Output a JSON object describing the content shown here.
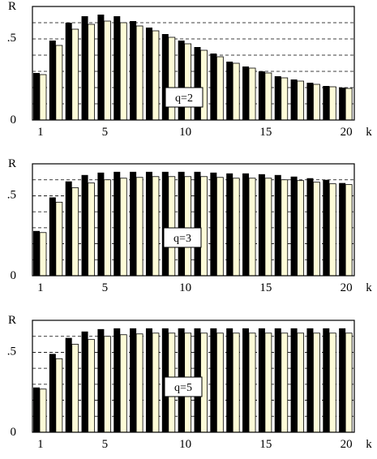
{
  "chart_data": [
    {
      "type": "bar",
      "panel_label": "q=2",
      "ylabel": "R",
      "xlabel": "k",
      "ytick_labels": {
        "half": ".5",
        "zero": "0"
      },
      "xtick_labels": [
        "1",
        "5",
        "10",
        "15",
        "20"
      ],
      "categories": [
        1,
        2,
        3,
        4,
        5,
        6,
        7,
        8,
        9,
        10,
        11,
        12,
        13,
        14,
        15,
        16,
        17,
        18,
        19,
        20
      ],
      "ylim": [
        0,
        0.7
      ],
      "series": [
        {
          "color": "#000000",
          "values": [
            0.29,
            0.49,
            0.6,
            0.64,
            0.65,
            0.64,
            0.61,
            0.57,
            0.53,
            0.49,
            0.45,
            0.41,
            0.36,
            0.33,
            0.3,
            0.27,
            0.25,
            0.23,
            0.21,
            0.2
          ]
        },
        {
          "color": "#fdfbd7",
          "values": [
            0.28,
            0.46,
            0.56,
            0.59,
            0.61,
            0.6,
            0.58,
            0.55,
            0.51,
            0.47,
            0.43,
            0.39,
            0.35,
            0.32,
            0.29,
            0.26,
            0.24,
            0.22,
            0.205,
            0.195
          ]
        }
      ]
    },
    {
      "type": "bar",
      "panel_label": "q=3",
      "ylabel": "R",
      "xlabel": "k",
      "ytick_labels": {
        "half": ".5",
        "zero": "0"
      },
      "xtick_labels": [
        "1",
        "5",
        "10",
        "15",
        "20"
      ],
      "categories": [
        1,
        2,
        3,
        4,
        5,
        6,
        7,
        8,
        9,
        10,
        11,
        12,
        13,
        14,
        15,
        16,
        17,
        18,
        19,
        20
      ],
      "ylim": [
        0,
        0.7
      ],
      "series": [
        {
          "color": "#000000",
          "values": [
            0.28,
            0.49,
            0.59,
            0.63,
            0.645,
            0.65,
            0.65,
            0.65,
            0.65,
            0.65,
            0.65,
            0.645,
            0.64,
            0.64,
            0.635,
            0.63,
            0.62,
            0.61,
            0.6,
            0.58
          ]
        },
        {
          "color": "#fdfbd7",
          "values": [
            0.27,
            0.46,
            0.55,
            0.58,
            0.6,
            0.61,
            0.615,
            0.62,
            0.62,
            0.62,
            0.62,
            0.615,
            0.61,
            0.61,
            0.61,
            0.6,
            0.595,
            0.585,
            0.575,
            0.57
          ]
        }
      ]
    },
    {
      "type": "bar",
      "panel_label": "q=5",
      "ylabel": "R",
      "xlabel": "k",
      "ytick_labels": {
        "half": ".5",
        "zero": "0"
      },
      "xtick_labels": [
        "1",
        "5",
        "10",
        "15",
        "20"
      ],
      "categories": [
        1,
        2,
        3,
        4,
        5,
        6,
        7,
        8,
        9,
        10,
        11,
        12,
        13,
        14,
        15,
        16,
        17,
        18,
        19,
        20
      ],
      "ylim": [
        0,
        0.7
      ],
      "series": [
        {
          "color": "#000000",
          "values": [
            0.28,
            0.49,
            0.59,
            0.63,
            0.645,
            0.65,
            0.65,
            0.65,
            0.65,
            0.65,
            0.65,
            0.65,
            0.65,
            0.65,
            0.65,
            0.65,
            0.65,
            0.65,
            0.65,
            0.65
          ]
        },
        {
          "color": "#fdfbd7",
          "values": [
            0.27,
            0.46,
            0.55,
            0.58,
            0.6,
            0.61,
            0.615,
            0.62,
            0.62,
            0.62,
            0.62,
            0.62,
            0.62,
            0.62,
            0.62,
            0.62,
            0.62,
            0.62,
            0.62,
            0.62
          ]
        }
      ]
    }
  ]
}
